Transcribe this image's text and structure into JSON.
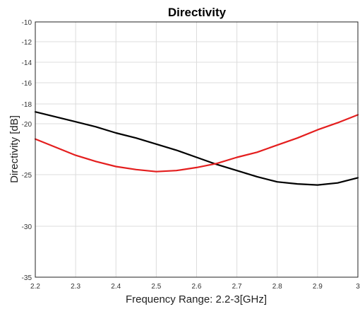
{
  "chart_data": {
    "type": "line",
    "title": "Directivity",
    "xlabel": "Frequency Range: 2.2-3[GHz]",
    "ylabel": "Directivity [dB]",
    "xlim": [
      2.2,
      3.0
    ],
    "ylim": [
      -35,
      -10
    ],
    "grid": true,
    "xticks": [
      2.2,
      2.3,
      2.4,
      2.5,
      2.6,
      2.7,
      2.8,
      2.9,
      3.0
    ],
    "xtick_labels": [
      "2.2",
      "2.3",
      "2.4",
      "2.5",
      "2.6",
      "2.7",
      "2.8",
      "2.9",
      "3"
    ],
    "yticks": [
      -35,
      -30,
      -25,
      -20,
      -18,
      -16,
      -14,
      -12,
      -10
    ],
    "ytick_labels": [
      "-35",
      "-30",
      "-25",
      "-20",
      "-18",
      "-16",
      "-14",
      "-12",
      "-10"
    ],
    "series": [
      {
        "color": "#000000",
        "x": [
          2.2,
          2.25,
          2.3,
          2.35,
          2.4,
          2.45,
          2.5,
          2.55,
          2.6,
          2.65,
          2.7,
          2.75,
          2.8,
          2.85,
          2.9,
          2.95,
          3.0
        ],
        "y": [
          -18.8,
          -19.3,
          -19.8,
          -20.3,
          -20.9,
          -21.4,
          -22.0,
          -22.6,
          -23.3,
          -24.0,
          -24.6,
          -25.2,
          -25.7,
          -25.9,
          -26.0,
          -25.8,
          -25.3
        ]
      },
      {
        "color": "#e41e1e",
        "x": [
          2.2,
          2.25,
          2.3,
          2.35,
          2.4,
          2.45,
          2.5,
          2.55,
          2.6,
          2.65,
          2.7,
          2.75,
          2.8,
          2.85,
          2.9,
          2.95,
          3.0
        ],
        "y": [
          -21.5,
          -22.3,
          -23.1,
          -23.7,
          -24.2,
          -24.5,
          -24.7,
          -24.6,
          -24.3,
          -23.9,
          -23.3,
          -22.8,
          -22.1,
          -21.4,
          -20.6,
          -19.9,
          -19.1
        ]
      }
    ]
  }
}
